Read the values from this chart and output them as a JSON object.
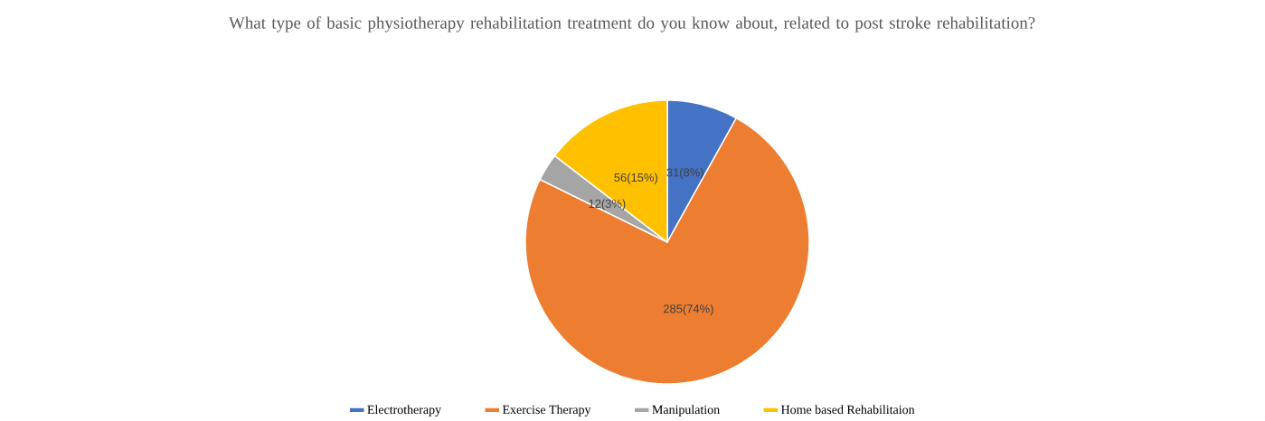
{
  "chart_data": {
    "type": "pie",
    "title": "What type of basic physiotherapy rehabilitation treatment do you know about, related to post stroke rehabilitation?",
    "categories": [
      "Electrotherapy",
      "Exercise Therapy",
      "Manipulation",
      "Home based Rehabilitaion"
    ],
    "values": [
      31,
      285,
      12,
      56
    ],
    "value_labels": [
      "31(8%)",
      "285(74%)",
      "12(3%)",
      "56(15%)"
    ],
    "colors": [
      "#4472c4",
      "#ed7d31",
      "#a5a5a5",
      "#ffc000"
    ],
    "legend": "bottom"
  }
}
